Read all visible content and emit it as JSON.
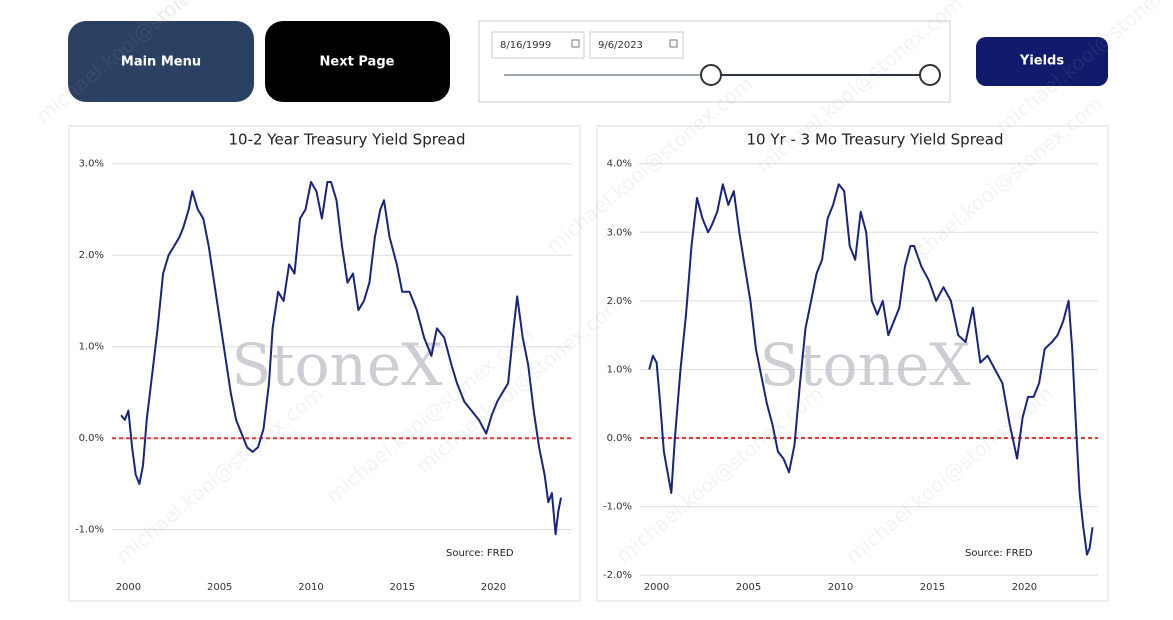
{
  "buttons": {
    "main_menu": "Main Menu",
    "next_page": "Next Page",
    "yields": "Yields"
  },
  "date_range": {
    "start": "8/16/1999",
    "end": "9/6/2023"
  },
  "watermark_email": "michael.kooi@stonex.com",
  "chart_data": [
    {
      "type": "line",
      "title": "10-2 Year Treasury Yield Spread",
      "annotation": "Source: FRED",
      "watermark": "StoneX",
      "xlim": [
        1999.1,
        2024.3
      ],
      "xticks": [
        2000,
        2005,
        2010,
        2015,
        2020
      ],
      "ylim": [
        -1.55,
        3.15
      ],
      "yticks": [
        {
          "value": -1,
          "label": "-1.0%"
        },
        {
          "value": 0,
          "label": "0.0%"
        },
        {
          "value": 1,
          "label": "1.0%"
        },
        {
          "value": 2,
          "label": "2.0%"
        },
        {
          "value": 3,
          "label": "3.0%"
        }
      ],
      "grid": true,
      "reference_line": {
        "value": 0,
        "color": "#e03c31"
      },
      "x": [
        1999.6,
        1999.8,
        2000.0,
        2000.2,
        2000.4,
        2000.6,
        2000.8,
        2001.0,
        2001.3,
        2001.6,
        2001.9,
        2002.2,
        2002.5,
        2002.8,
        2003.0,
        2003.3,
        2003.5,
        2003.8,
        2004.1,
        2004.4,
        2004.7,
        2005.0,
        2005.3,
        2005.6,
        2005.9,
        2006.2,
        2006.5,
        2006.8,
        2007.1,
        2007.4,
        2007.7,
        2007.9,
        2008.2,
        2008.5,
        2008.8,
        2009.1,
        2009.4,
        2009.7,
        2010.0,
        2010.3,
        2010.6,
        2010.9,
        2011.1,
        2011.4,
        2011.7,
        2012.0,
        2012.3,
        2012.6,
        2012.9,
        2013.2,
        2013.5,
        2013.8,
        2014.0,
        2014.3,
        2014.7,
        2015.0,
        2015.4,
        2015.8,
        2016.2,
        2016.6,
        2016.9,
        2017.3,
        2017.7,
        2018.0,
        2018.4,
        2018.8,
        2019.2,
        2019.6,
        2019.9,
        2020.2,
        2020.5,
        2020.8,
        2021.1,
        2021.3,
        2021.6,
        2021.9,
        2022.2,
        2022.5,
        2022.8,
        2023.0,
        2023.2,
        2023.4,
        2023.55,
        2023.7
      ],
      "series": [
        {
          "name": "10-2 Year Treasury Yield Spread",
          "color": "#1a237e",
          "values": [
            0.25,
            0.2,
            0.3,
            -0.1,
            -0.4,
            -0.5,
            -0.3,
            0.2,
            0.7,
            1.2,
            1.8,
            2.0,
            2.1,
            2.2,
            2.3,
            2.5,
            2.7,
            2.5,
            2.4,
            2.1,
            1.7,
            1.3,
            0.9,
            0.5,
            0.2,
            0.05,
            -0.1,
            -0.15,
            -0.1,
            0.1,
            0.6,
            1.2,
            1.6,
            1.5,
            1.9,
            1.8,
            2.4,
            2.5,
            2.8,
            2.7,
            2.4,
            2.8,
            2.8,
            2.6,
            2.1,
            1.7,
            1.8,
            1.4,
            1.5,
            1.7,
            2.2,
            2.5,
            2.6,
            2.2,
            1.9,
            1.6,
            1.6,
            1.4,
            1.1,
            0.9,
            1.2,
            1.1,
            0.8,
            0.6,
            0.4,
            0.3,
            0.2,
            0.05,
            0.25,
            0.4,
            0.5,
            0.6,
            1.2,
            1.55,
            1.1,
            0.8,
            0.3,
            -0.1,
            -0.4,
            -0.7,
            -0.6,
            -1.05,
            -0.8,
            -0.65
          ]
        }
      ]
    },
    {
      "type": "line",
      "title": "10 Yr - 3 Mo Treasury Yield Spread",
      "annotation": "Source: FRED",
      "watermark": "StoneX",
      "xlim": [
        1999.1,
        2024.0
      ],
      "xticks": [
        2000,
        2005,
        2010,
        2015,
        2020
      ],
      "ylim": [
        -2.07,
        4.2
      ],
      "yticks": [
        {
          "value": -2,
          "label": "-2.0%"
        },
        {
          "value": -1,
          "label": "-1.0%"
        },
        {
          "value": 0,
          "label": "0.0%"
        },
        {
          "value": 1,
          "label": "1.0%"
        },
        {
          "value": 2,
          "label": "2.0%"
        },
        {
          "value": 3,
          "label": "3.0%"
        },
        {
          "value": 4,
          "label": "4.0%"
        }
      ],
      "grid": true,
      "reference_line": {
        "value": 0,
        "color": "#e03c31"
      },
      "x": [
        1999.6,
        1999.8,
        2000.0,
        2000.2,
        2000.4,
        2000.6,
        2000.8,
        2001.0,
        2001.3,
        2001.6,
        2001.9,
        2002.2,
        2002.5,
        2002.8,
        2003.0,
        2003.3,
        2003.6,
        2003.9,
        2004.2,
        2004.5,
        2004.8,
        2005.1,
        2005.4,
        2005.7,
        2006.0,
        2006.3,
        2006.6,
        2006.9,
        2007.2,
        2007.5,
        2007.8,
        2008.1,
        2008.4,
        2008.7,
        2009.0,
        2009.3,
        2009.6,
        2009.9,
        2010.2,
        2010.5,
        2010.8,
        2011.1,
        2011.4,
        2011.7,
        2012.0,
        2012.3,
        2012.6,
        2012.9,
        2013.2,
        2013.5,
        2013.8,
        2014.0,
        2014.4,
        2014.8,
        2015.2,
        2015.6,
        2016.0,
        2016.4,
        2016.8,
        2017.2,
        2017.6,
        2018.0,
        2018.4,
        2018.8,
        2019.2,
        2019.6,
        2019.9,
        2020.2,
        2020.5,
        2020.8,
        2021.1,
        2021.5,
        2021.8,
        2022.1,
        2022.4,
        2022.6,
        2022.8,
        2023.0,
        2023.2,
        2023.4,
        2023.55,
        2023.7
      ],
      "series": [
        {
          "name": "10 Yr - 3 Mo Treasury Yield Spread",
          "color": "#1a237e",
          "values": [
            1.0,
            1.2,
            1.1,
            0.5,
            -0.2,
            -0.5,
            -0.8,
            0.0,
            1.0,
            1.8,
            2.8,
            3.5,
            3.2,
            3.0,
            3.1,
            3.3,
            3.7,
            3.4,
            3.6,
            3.0,
            2.5,
            2.0,
            1.3,
            0.9,
            0.5,
            0.2,
            -0.2,
            -0.3,
            -0.5,
            -0.1,
            0.8,
            1.6,
            2.0,
            2.4,
            2.6,
            3.2,
            3.4,
            3.7,
            3.6,
            2.8,
            2.6,
            3.3,
            3.0,
            2.0,
            1.8,
            2.0,
            1.5,
            1.7,
            1.9,
            2.5,
            2.8,
            2.8,
            2.5,
            2.3,
            2.0,
            2.2,
            2.0,
            1.5,
            1.4,
            1.9,
            1.1,
            1.2,
            1.0,
            0.8,
            0.2,
            -0.3,
            0.3,
            0.6,
            0.6,
            0.8,
            1.3,
            1.4,
            1.5,
            1.7,
            2.0,
            1.3,
            0.2,
            -0.8,
            -1.3,
            -1.7,
            -1.6,
            -1.3
          ]
        }
      ]
    }
  ]
}
